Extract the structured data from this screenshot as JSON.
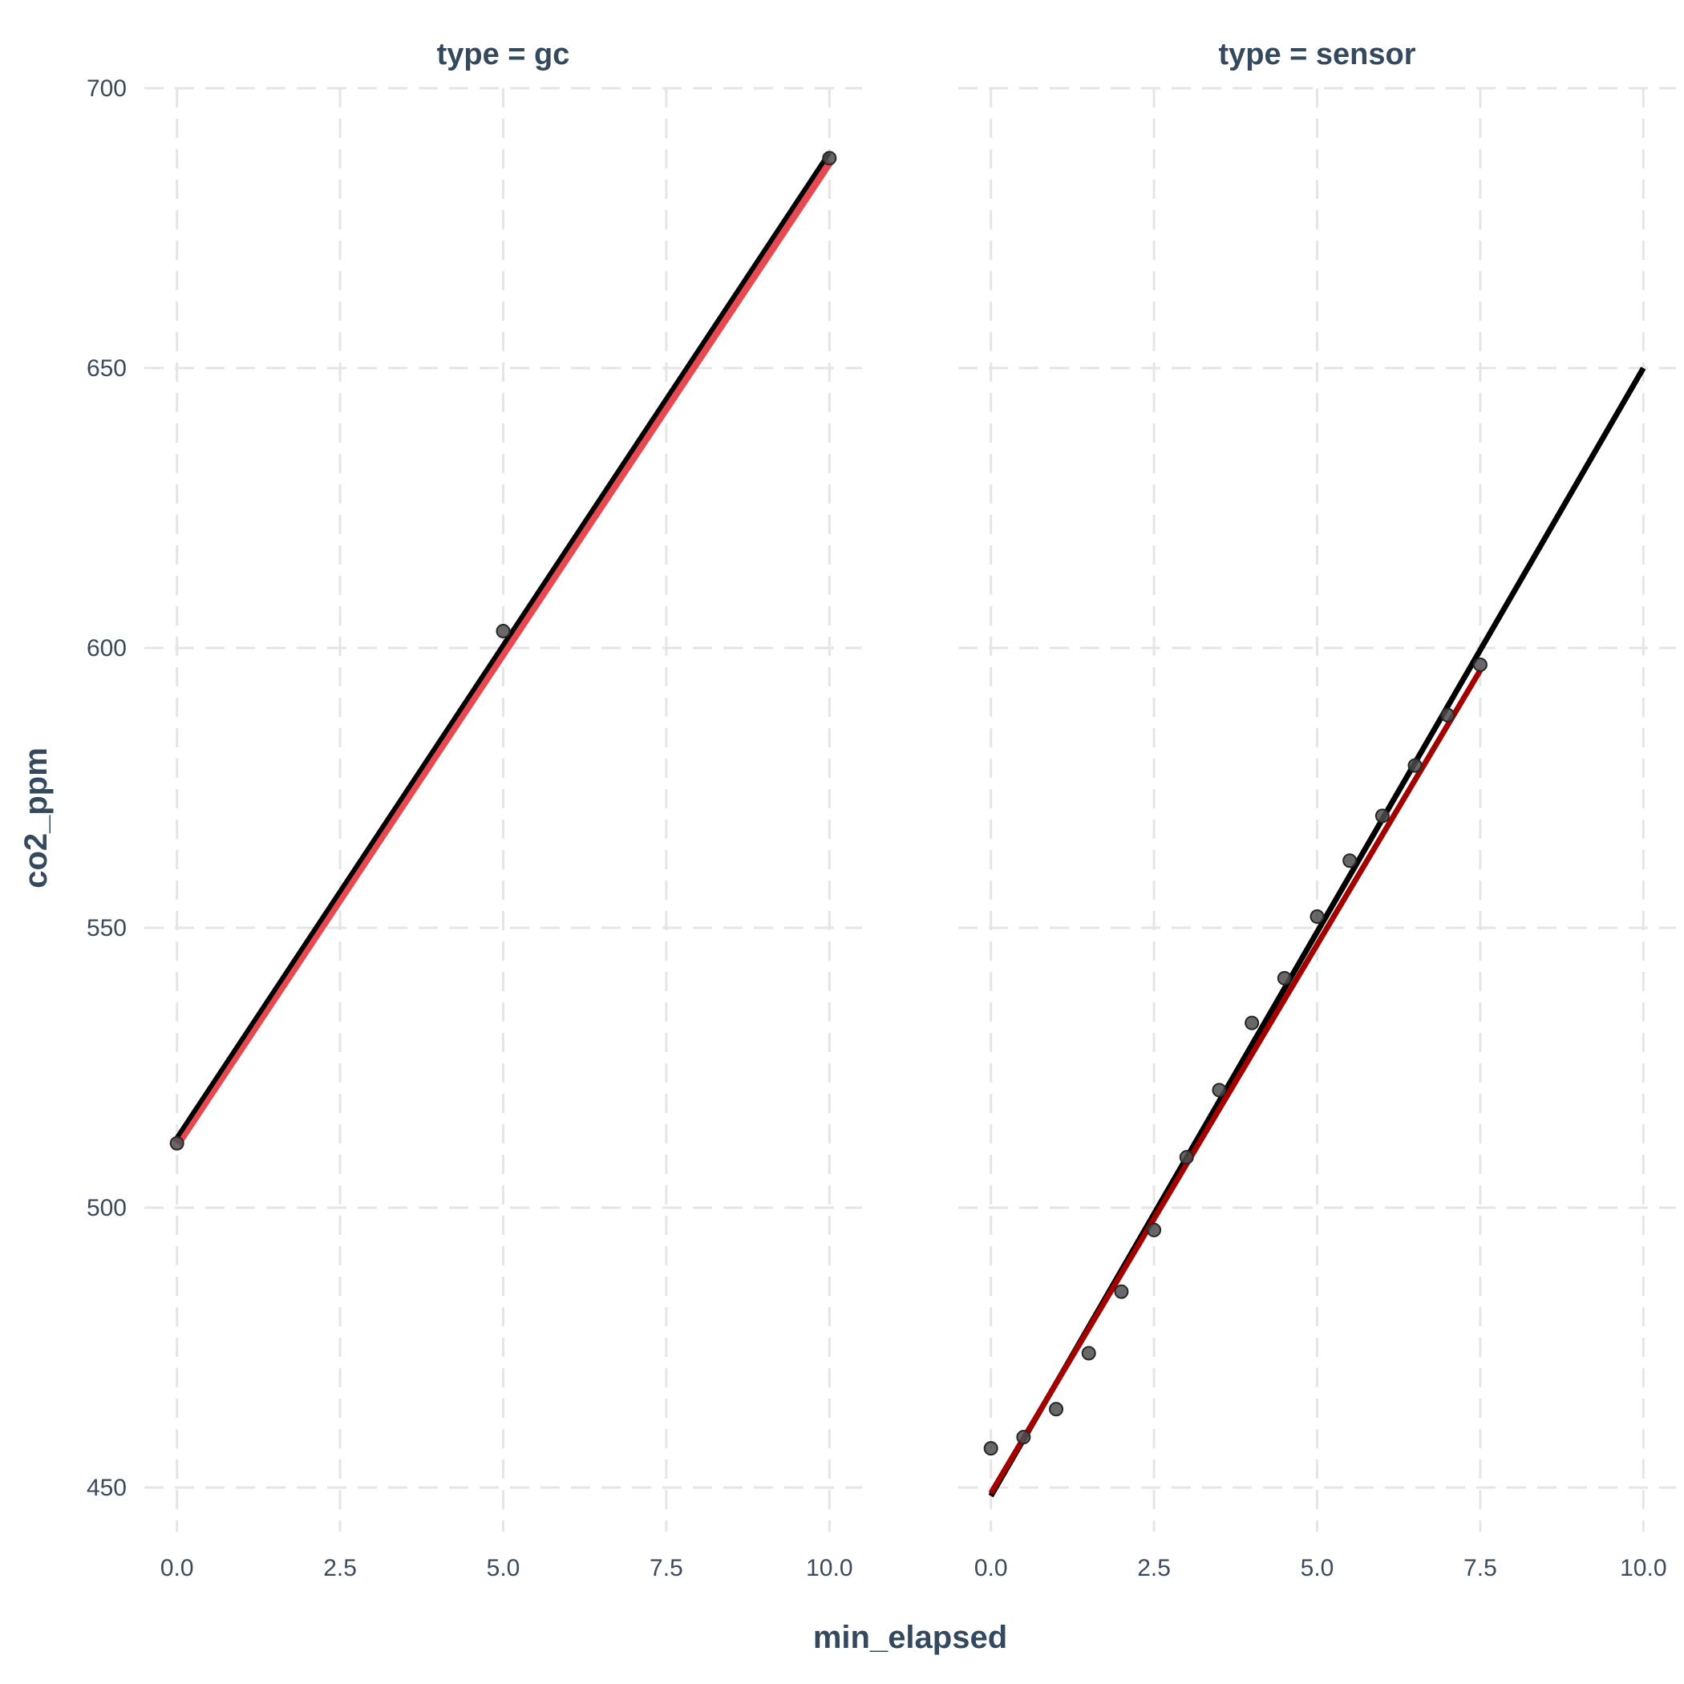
{
  "chart_data": {
    "type": "scatter",
    "xlabel": "min_elapsed",
    "ylabel": "co2_ppm",
    "xlim": [
      0,
      10
    ],
    "ylim": [
      450,
      700
    ],
    "x_ticks": [
      "0.0",
      "2.5",
      "5.0",
      "7.5",
      "10.0"
    ],
    "y_ticks": [
      "450",
      "500",
      "550",
      "600",
      "650",
      "700"
    ],
    "grid": "dashed",
    "colors": {
      "points": "#4d4d4d",
      "red_fit": "#e8484f",
      "dark_red_fit": "#a30000",
      "black_fit": "#000000"
    },
    "panels": [
      {
        "label": "type = gc",
        "points": {
          "x": [
            0,
            5,
            10
          ],
          "y": [
            511.5,
            603,
            687.5
          ]
        },
        "red_fit": {
          "x": [
            0,
            10
          ],
          "y": [
            511.5,
            687
          ]
        },
        "black_fit": {
          "x": [
            0,
            10
          ],
          "y": [
            512.5,
            688.5
          ]
        }
      },
      {
        "label": "type = sensor",
        "points": {
          "x": [
            0,
            0.5,
            1,
            1.5,
            2,
            2.5,
            3,
            3.5,
            4,
            4.5,
            5,
            5.5,
            6,
            6.5,
            7,
            7.5
          ],
          "y": [
            457,
            459,
            464,
            474,
            485,
            496,
            509,
            521,
            533,
            541,
            552,
            562,
            570,
            579,
            588,
            597
          ]
        },
        "red_fit": {
          "x": [
            0,
            7.5
          ],
          "y": [
            449,
            596
          ]
        },
        "black_fit": {
          "x": [
            0,
            10
          ],
          "y": [
            448.5,
            650
          ]
        }
      }
    ]
  }
}
